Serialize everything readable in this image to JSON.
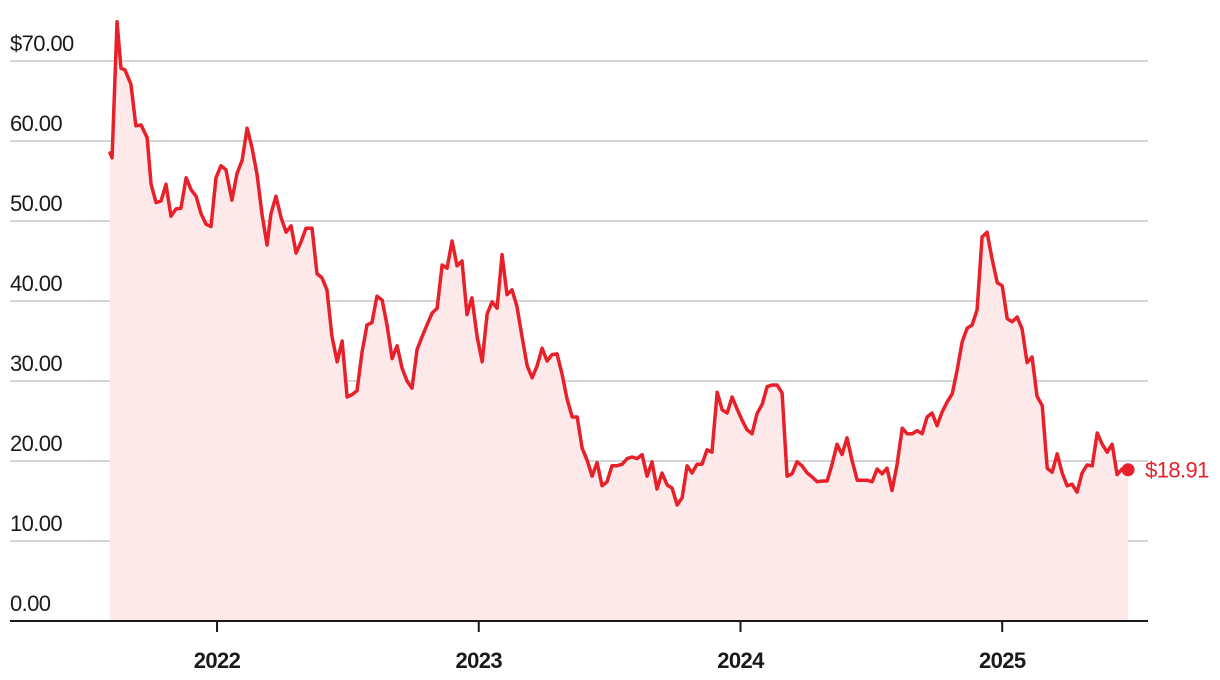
{
  "chart_data": {
    "type": "line",
    "annotation": "$18.91",
    "color": "#e8202a",
    "area_color": "#fde9ea",
    "grid": true,
    "xlim": [
      2021.209,
      2025.557
    ],
    "xticks": [
      2022,
      2023,
      2024,
      2025
    ],
    "ylim": [
      0,
      75
    ],
    "yticks": [
      {
        "value": 0,
        "label": "0.00"
      },
      {
        "value": 10,
        "label": "10.00"
      },
      {
        "value": 20,
        "label": "20.00"
      },
      {
        "value": 30,
        "label": "30.00"
      },
      {
        "value": 40,
        "label": "40.00"
      },
      {
        "value": 50,
        "label": "50.00"
      },
      {
        "value": 60,
        "label": "60.00"
      },
      {
        "value": 70,
        "label": "$70.00"
      }
    ],
    "x": [
      2021.591,
      2021.599,
      2021.618,
      2021.633,
      2021.648,
      2021.671,
      2021.69,
      2021.71,
      2021.733,
      2021.748,
      2021.767,
      2021.786,
      2021.805,
      2021.824,
      2021.843,
      2021.862,
      2021.882,
      2021.901,
      2021.92,
      2021.939,
      2021.958,
      2021.977,
      2021.996,
      2022.015,
      2022.034,
      2022.057,
      2022.076,
      2022.096,
      2022.115,
      2022.134,
      2022.153,
      2022.172,
      2022.191,
      2022.206,
      2022.225,
      2022.245,
      2022.264,
      2022.283,
      2022.302,
      2022.321,
      2022.34,
      2022.363,
      2022.382,
      2022.401,
      2022.42,
      2022.439,
      2022.459,
      2022.478,
      2022.497,
      2022.516,
      2022.535,
      2022.554,
      2022.573,
      2022.592,
      2022.611,
      2022.631,
      2022.65,
      2022.669,
      2022.688,
      2022.707,
      2022.726,
      2022.745,
      2022.764,
      2022.783,
      2022.802,
      2022.822,
      2022.841,
      2022.86,
      2022.879,
      2022.898,
      2022.917,
      2022.936,
      2022.955,
      2022.974,
      2022.994,
      2023.013,
      2023.032,
      2023.051,
      2023.07,
      2023.089,
      2023.108,
      2023.127,
      2023.146,
      2023.165,
      2023.185,
      2023.204,
      2023.223,
      2023.242,
      2023.261,
      2023.28,
      2023.299,
      2023.318,
      2023.337,
      2023.357,
      2023.376,
      2023.395,
      2023.414,
      2023.433,
      2023.452,
      2023.471,
      2023.49,
      2023.509,
      2023.528,
      2023.548,
      2023.567,
      2023.586,
      2023.605,
      2023.624,
      2023.643,
      2023.662,
      2023.681,
      2023.7,
      2023.72,
      2023.739,
      2023.758,
      2023.777,
      2023.796,
      2023.815,
      2023.834,
      2023.853,
      2023.872,
      2023.891,
      2023.911,
      2023.93,
      2023.949,
      2023.968,
      2023.987,
      2024.006,
      2024.025,
      2024.044,
      2024.063,
      2024.083,
      2024.102,
      2024.121,
      2024.14,
      2024.159,
      2024.178,
      2024.197,
      2024.216,
      2024.235,
      2024.255,
      2024.274,
      2024.293,
      2024.312,
      2024.331,
      2024.35,
      2024.369,
      2024.388,
      2024.407,
      2024.426,
      2024.446,
      2024.465,
      2024.484,
      2024.503,
      2024.522,
      2024.541,
      2024.56,
      2024.579,
      2024.598,
      2024.618,
      2024.637,
      2024.656,
      2024.675,
      2024.694,
      2024.713,
      2024.732,
      2024.751,
      2024.77,
      2024.79,
      2024.809,
      2024.828,
      2024.847,
      2024.866,
      2024.885,
      2024.904,
      2024.923,
      2024.942,
      2024.961,
      2024.981,
      2025.0,
      2025.019,
      2025.038,
      2025.057,
      2025.076,
      2025.095,
      2025.114,
      2025.133,
      2025.153,
      2025.172,
      2025.191,
      2025.21,
      2025.229,
      2025.248,
      2025.267,
      2025.286,
      2025.305,
      2025.324,
      2025.344,
      2025.363,
      2025.382,
      2025.401,
      2025.42,
      2025.439,
      2025.458,
      2025.481
    ],
    "values": [
      58.5,
      57.9,
      74.9,
      69.1,
      68.9,
      67.1,
      61.9,
      62,
      60.4,
      54.6,
      52.3,
      52.5,
      54.6,
      50.6,
      51.5,
      51.6,
      55.4,
      53.9,
      53.1,
      50.9,
      49.6,
      49.3,
      55.4,
      56.9,
      56.4,
      52.6,
      55.9,
      57.6,
      61.6,
      59.1,
      55.8,
      50.8,
      47,
      50.9,
      53.1,
      50.4,
      48.6,
      49.4,
      46,
      47.4,
      49.1,
      49.1,
      43.4,
      42.9,
      41.4,
      35.6,
      32.4,
      35,
      28,
      28.3,
      28.8,
      33.6,
      37,
      37.3,
      40.6,
      40.1,
      36.9,
      32.8,
      34.4,
      31.6,
      30,
      29.1,
      33.9,
      35.5,
      37,
      38.5,
      39.1,
      44.5,
      44.1,
      47.5,
      44.4,
      45,
      38.3,
      40.4,
      35.5,
      32.4,
      38.4,
      39.9,
      39.1,
      45.8,
      40.8,
      41.4,
      39.3,
      35.6,
      31.9,
      30.4,
      31.9,
      34.1,
      32.5,
      33.3,
      33.4,
      30.9,
      27.8,
      25.5,
      25.5,
      21.6,
      20.1,
      18.1,
      19.8,
      16.9,
      17.4,
      19.4,
      19.4,
      19.6,
      20.3,
      20.5,
      20.3,
      20.8,
      18.1,
      19.9,
      16.5,
      18.5,
      17,
      16.6,
      14.5,
      15.4,
      19.4,
      18.5,
      19.6,
      19.6,
      21.4,
      21.1,
      28.6,
      26.4,
      26,
      28,
      26.5,
      25.1,
      23.9,
      23.4,
      25.9,
      27.1,
      29.3,
      29.5,
      29.5,
      28.5,
      18.1,
      18.4,
      19.9,
      19.4,
      18.5,
      18,
      17.4,
      17.5,
      17.5,
      19.6,
      22.1,
      20.8,
      22.9,
      20.1,
      17.6,
      17.6,
      17.6,
      17.4,
      19,
      18.4,
      19.1,
      16.3,
      19.5,
      24.1,
      23.4,
      23.4,
      23.8,
      23.4,
      25.5,
      26,
      24.4,
      26.1,
      27.4,
      28.4,
      31.4,
      34.9,
      36.6,
      37,
      38.9,
      48,
      48.6,
      45.3,
      42.3,
      41.9,
      37.8,
      37.4,
      38,
      36.5,
      32.3,
      33,
      28.1,
      26.9,
      19.1,
      18.6,
      20.9,
      18.5,
      16.9,
      17.1,
      16.1,
      18.5,
      19.5,
      19.4,
      23.5,
      22.1,
      21.1,
      22.1,
      18.3,
      19,
      18.91
    ]
  }
}
